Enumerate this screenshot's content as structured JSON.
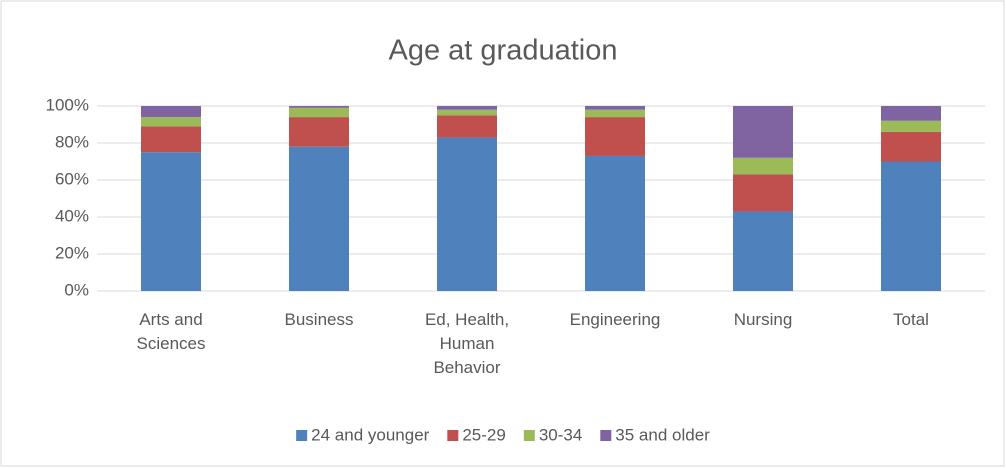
{
  "chart_data": {
    "type": "stacked_bar",
    "title": "Age at graduation",
    "categories": [
      "Arts and Sciences",
      "Business",
      "Ed, Health, Human Behavior",
      "Engineering",
      "Nursing",
      "Total"
    ],
    "series": [
      {
        "name": "24 and younger",
        "color": "#4f81bd",
        "values": [
          75,
          78,
          83,
          73,
          43,
          70
        ]
      },
      {
        "name": "25-29",
        "color": "#c0504d",
        "values": [
          14,
          16,
          12,
          21,
          20,
          16
        ]
      },
      {
        "name": "30-34",
        "color": "#9bbb59",
        "values": [
          5,
          5,
          3,
          4,
          9,
          6
        ]
      },
      {
        "name": "35 and older",
        "color": "#8064a2",
        "values": [
          6,
          1,
          2,
          2,
          28,
          8
        ]
      }
    ],
    "ylim": [
      0,
      100
    ],
    "yticks": [
      {
        "value": 0,
        "label": "0%"
      },
      {
        "value": 20,
        "label": "20%"
      },
      {
        "value": 40,
        "label": "40%"
      },
      {
        "value": 60,
        "label": "60%"
      },
      {
        "value": 80,
        "label": "80%"
      },
      {
        "value": 100,
        "label": "100%"
      }
    ],
    "grid": true,
    "legend": "bottom"
  }
}
